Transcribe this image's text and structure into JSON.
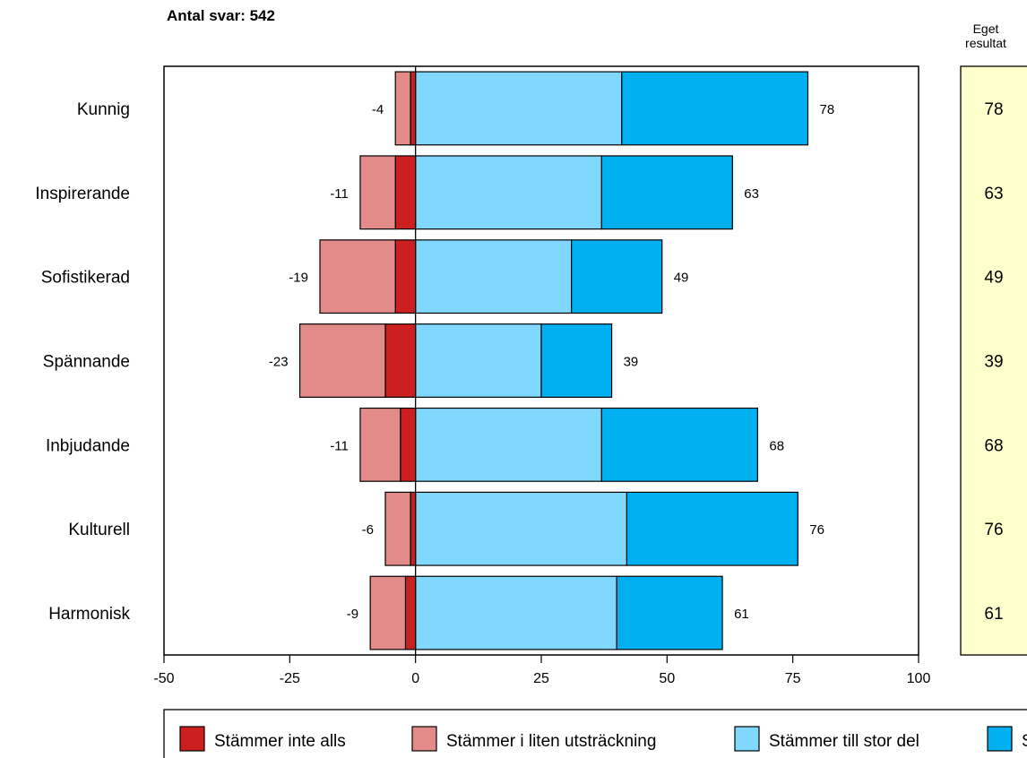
{
  "chart_data": {
    "type": "bar",
    "stacked": true,
    "orientation": "horizontal",
    "title": "Antal svar: 542",
    "categories": [
      "Kunnig",
      "Inspirerande",
      "Sofistikerad",
      "Spännande",
      "Inbjudande",
      "Kulturell",
      "Harmonisk"
    ],
    "series": [
      {
        "name": "Stämmer inte alls",
        "color": "#cc1f1f",
        "values": [
          -1,
          -4,
          -4,
          -6,
          -3,
          -1,
          -2
        ]
      },
      {
        "name": "Stämmer i liten utsträckning",
        "color": "#e28b89",
        "values": [
          -3,
          -7,
          -15,
          -17,
          -8,
          -5,
          -7
        ]
      },
      {
        "name": "Stämmer till stor del",
        "color": "#80d8ff",
        "values": [
          41,
          37,
          31,
          25,
          37,
          42,
          40
        ]
      },
      {
        "name": "S",
        "color": "#00b0f0",
        "values": [
          37,
          26,
          18,
          14,
          31,
          34,
          21
        ]
      }
    ],
    "negative_totals": [
      -4,
      -11,
      -19,
      -23,
      -11,
      -6,
      -9
    ],
    "positive_totals": [
      78,
      63,
      49,
      39,
      68,
      76,
      61
    ],
    "xlim": [
      -50,
      100
    ],
    "xticks": [
      -50,
      -25,
      0,
      25,
      50,
      75,
      100
    ],
    "xlabel": "",
    "ylabel": "",
    "legend_position": "bottom",
    "side_panel": {
      "title_line1": "Eget",
      "title_line2": "resultat",
      "values": [
        78,
        63,
        49,
        39,
        68,
        76,
        61
      ],
      "background": "#ffffcc"
    }
  }
}
